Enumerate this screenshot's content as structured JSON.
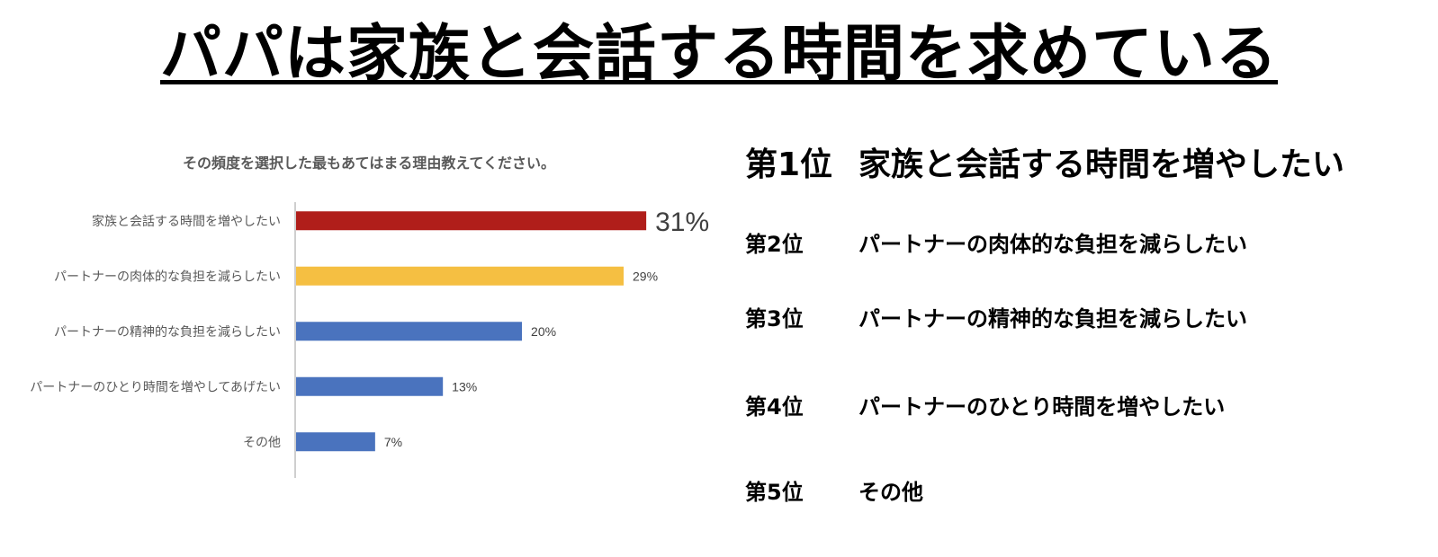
{
  "page_title": "パパは家族と会話する時間を求めている",
  "ranking": [
    {
      "rank": "第1位",
      "text": "家族と会話する時間を増やしたい"
    },
    {
      "rank": "第2位",
      "text": "パートナーの肉体的な負担を減らしたい"
    },
    {
      "rank": "第3位",
      "text": "パートナーの精神的な負担を減らしたい"
    },
    {
      "rank": "第4位",
      "text": "パートナーのひとり時間を増やしたい"
    },
    {
      "rank": "第5位",
      "text": "その他"
    }
  ],
  "chart_data": {
    "type": "bar",
    "orientation": "horizontal",
    "title": "その頻度を選択した最もあてはまる理由教えてください。",
    "categories": [
      "家族と会話する時間を増やしたい",
      "パートナーの肉体的な負担を減らしたい",
      "パートナーの精神的な負担を減らしたい",
      "パートナーのひとり時間を増やしてあげたい",
      "その他"
    ],
    "values": [
      31,
      29,
      20,
      13,
      7
    ],
    "value_labels": [
      "31%",
      "29%",
      "20%",
      "13%",
      "7%"
    ],
    "unit": "%",
    "xlim": [
      0,
      38
    ],
    "grid": false,
    "bar_colors": [
      "#B01E1A",
      "#F5BF42",
      "#4A73BE",
      "#4A73BE",
      "#4A73BE"
    ]
  }
}
